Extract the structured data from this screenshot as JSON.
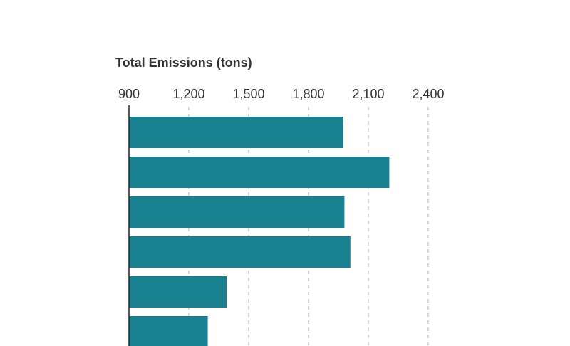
{
  "chart_data": {
    "type": "bar",
    "orientation": "horizontal",
    "title": "Total Emissions (tons)",
    "xlabel": "",
    "ylabel": "",
    "xlim": [
      900,
      2400
    ],
    "ticks": [
      900,
      1200,
      1500,
      1800,
      2100,
      2400
    ],
    "tick_labels": [
      "900",
      "1,200",
      "1,500",
      "1,800",
      "2,100",
      "2,400"
    ],
    "grid": true,
    "bar_color": "#19808f",
    "series": [
      {
        "values": [
          1975,
          2205,
          1980,
          2010,
          1390,
          1295
        ]
      }
    ]
  }
}
